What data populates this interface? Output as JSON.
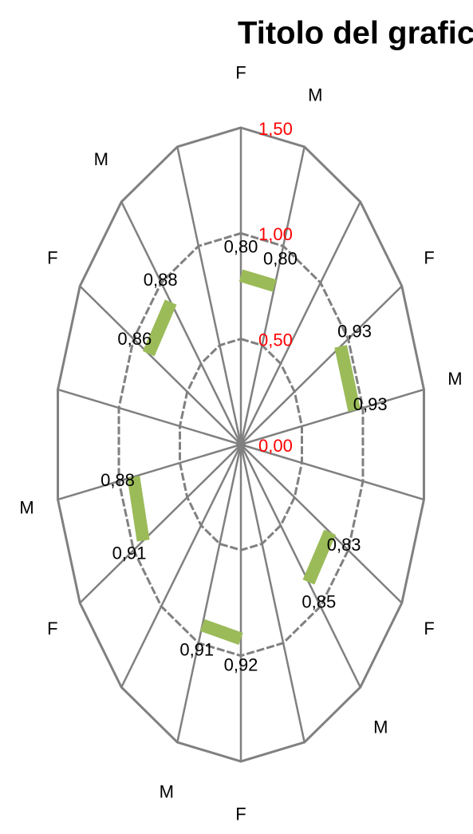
{
  "chart_data": {
    "type": "radar",
    "title": "Titolo del grafico",
    "categories": [
      "F",
      "M",
      null,
      "F",
      "M",
      null,
      "F",
      "M",
      null,
      "F",
      "M",
      null,
      "F",
      "M",
      null,
      "F",
      "M",
      null
    ],
    "series": [
      {
        "color": "#9bbb59",
        "values": [
          0.8,
          0.8,
          null,
          0.93,
          0.93,
          null,
          0.83,
          0.85,
          null,
          0.92,
          0.91,
          null,
          0.91,
          0.88,
          null,
          0.86,
          0.88,
          null
        ],
        "value_labels": [
          "0,80",
          "0,80",
          null,
          "0,93",
          "0,93",
          null,
          "0,83",
          "0,85",
          null,
          "0,92",
          "0,91",
          null,
          "0,91",
          "0,88",
          null,
          "0,86",
          "0,88",
          null
        ]
      }
    ],
    "ylim": [
      0,
      1.5
    ],
    "yticks": [
      {
        "value": 0,
        "label": "0,00"
      },
      {
        "value": 0.5,
        "label": "0,50"
      },
      {
        "value": 1,
        "label": "1,00"
      },
      {
        "value": 1.5,
        "label": "1,50"
      }
    ],
    "tick_color": "#ff0000",
    "grid": true
  }
}
